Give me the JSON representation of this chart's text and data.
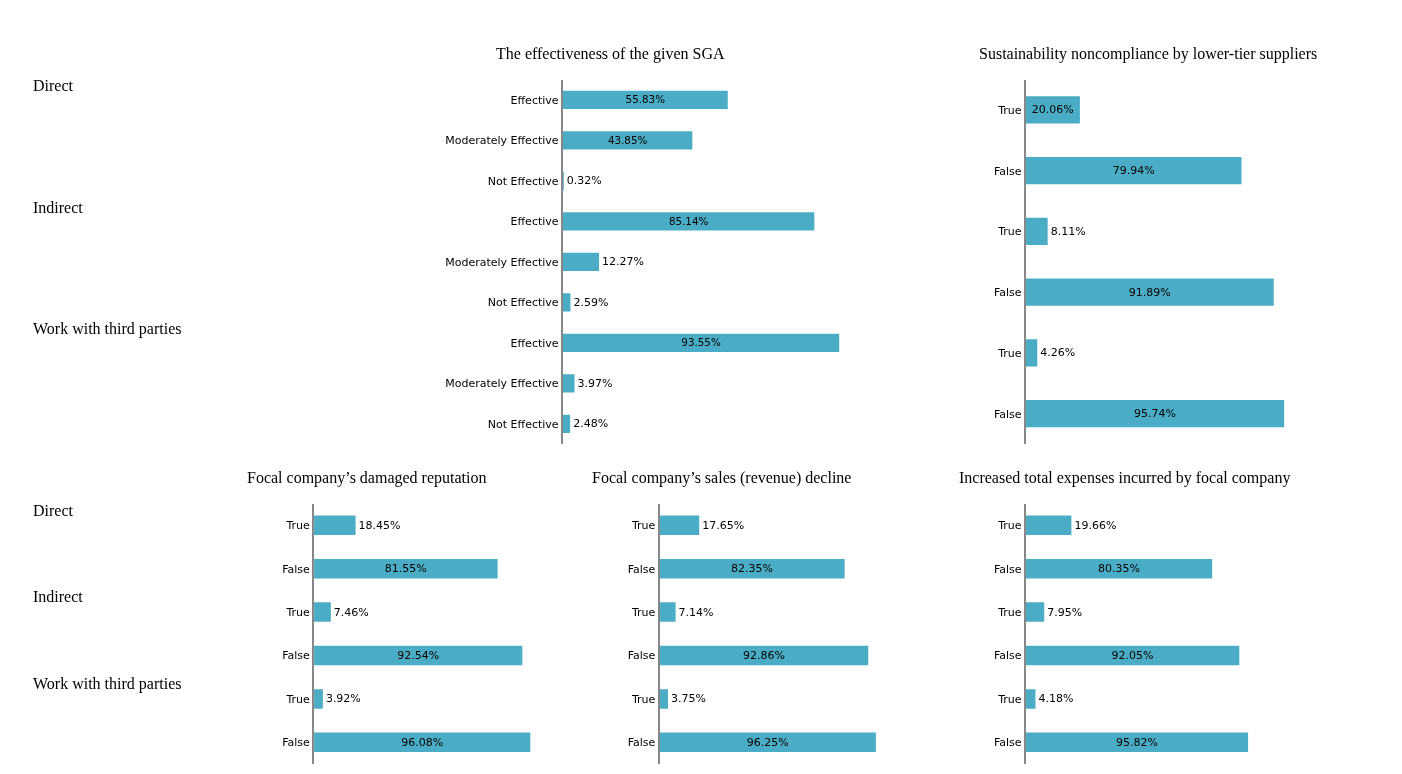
{
  "chart_data": [
    {
      "type": "bar",
      "orientation": "horizontal",
      "title": "The effectiveness of the given SGA",
      "categories": [
        "Effective",
        "Moderately Effective",
        "Not Effective",
        "Effective",
        "Moderately Effective",
        "Not Effective",
        "Effective",
        "Moderately Effective",
        "Not Effective"
      ],
      "values": [
        55.83,
        43.85,
        0.32,
        85.14,
        12.27,
        2.59,
        93.55,
        3.97,
        2.48
      ],
      "value_labels": [
        "55.83%",
        "43.85%",
        "0.32%",
        "85.14%",
        "12.27%",
        "2.59%",
        "93.55%",
        "3.97%",
        "2.48%"
      ],
      "color": "#4bacc6",
      "annotations": [
        "Direct",
        "Indirect",
        "Work with third parties"
      ]
    },
    {
      "type": "bar",
      "orientation": "horizontal",
      "title": "Sustainability noncompliance by lower-tier suppliers",
      "categories": [
        "True",
        "False",
        "True",
        "False",
        "True",
        "False"
      ],
      "values": [
        20.06,
        79.94,
        8.11,
        91.89,
        4.26,
        95.74
      ],
      "value_labels": [
        "20.06%",
        "79.94%",
        "8.11%",
        "91.89%",
        "4.26%",
        "95.74%"
      ],
      "color": "#4bacc6"
    },
    {
      "type": "bar",
      "orientation": "horizontal",
      "title": "Focal company’s damaged reputation",
      "categories": [
        "True",
        "False",
        "True",
        "False",
        "True",
        "False"
      ],
      "values": [
        18.45,
        81.55,
        7.46,
        92.54,
        3.92,
        96.08
      ],
      "value_labels": [
        "18.45%",
        "81.55%",
        "7.46%",
        "92.54%",
        "3.92%",
        "96.08%"
      ],
      "color": "#4bacc6",
      "annotations": [
        "Direct",
        "Indirect",
        "Work with third parties"
      ]
    },
    {
      "type": "bar",
      "orientation": "horizontal",
      "title": "Focal company’s sales (revenue) decline",
      "categories": [
        "True",
        "False",
        "True",
        "False",
        "True",
        "False"
      ],
      "values": [
        17.65,
        82.35,
        7.14,
        92.86,
        3.75,
        96.25
      ],
      "value_labels": [
        "17.65%",
        "82.35%",
        "7.14%",
        "92.86%",
        "3.75%",
        "96.25%"
      ],
      "color": "#4bacc6"
    },
    {
      "type": "bar",
      "orientation": "horizontal",
      "title": "Increased total expenses incurred by focal company",
      "categories": [
        "True",
        "False",
        "True",
        "False",
        "True",
        "False"
      ],
      "values": [
        19.66,
        80.35,
        7.95,
        92.05,
        4.18,
        95.82
      ],
      "value_labels": [
        "19.66%",
        "80.35%",
        "7.95%",
        "92.05%",
        "4.18%",
        "95.82%"
      ],
      "color": "#4bacc6"
    }
  ]
}
